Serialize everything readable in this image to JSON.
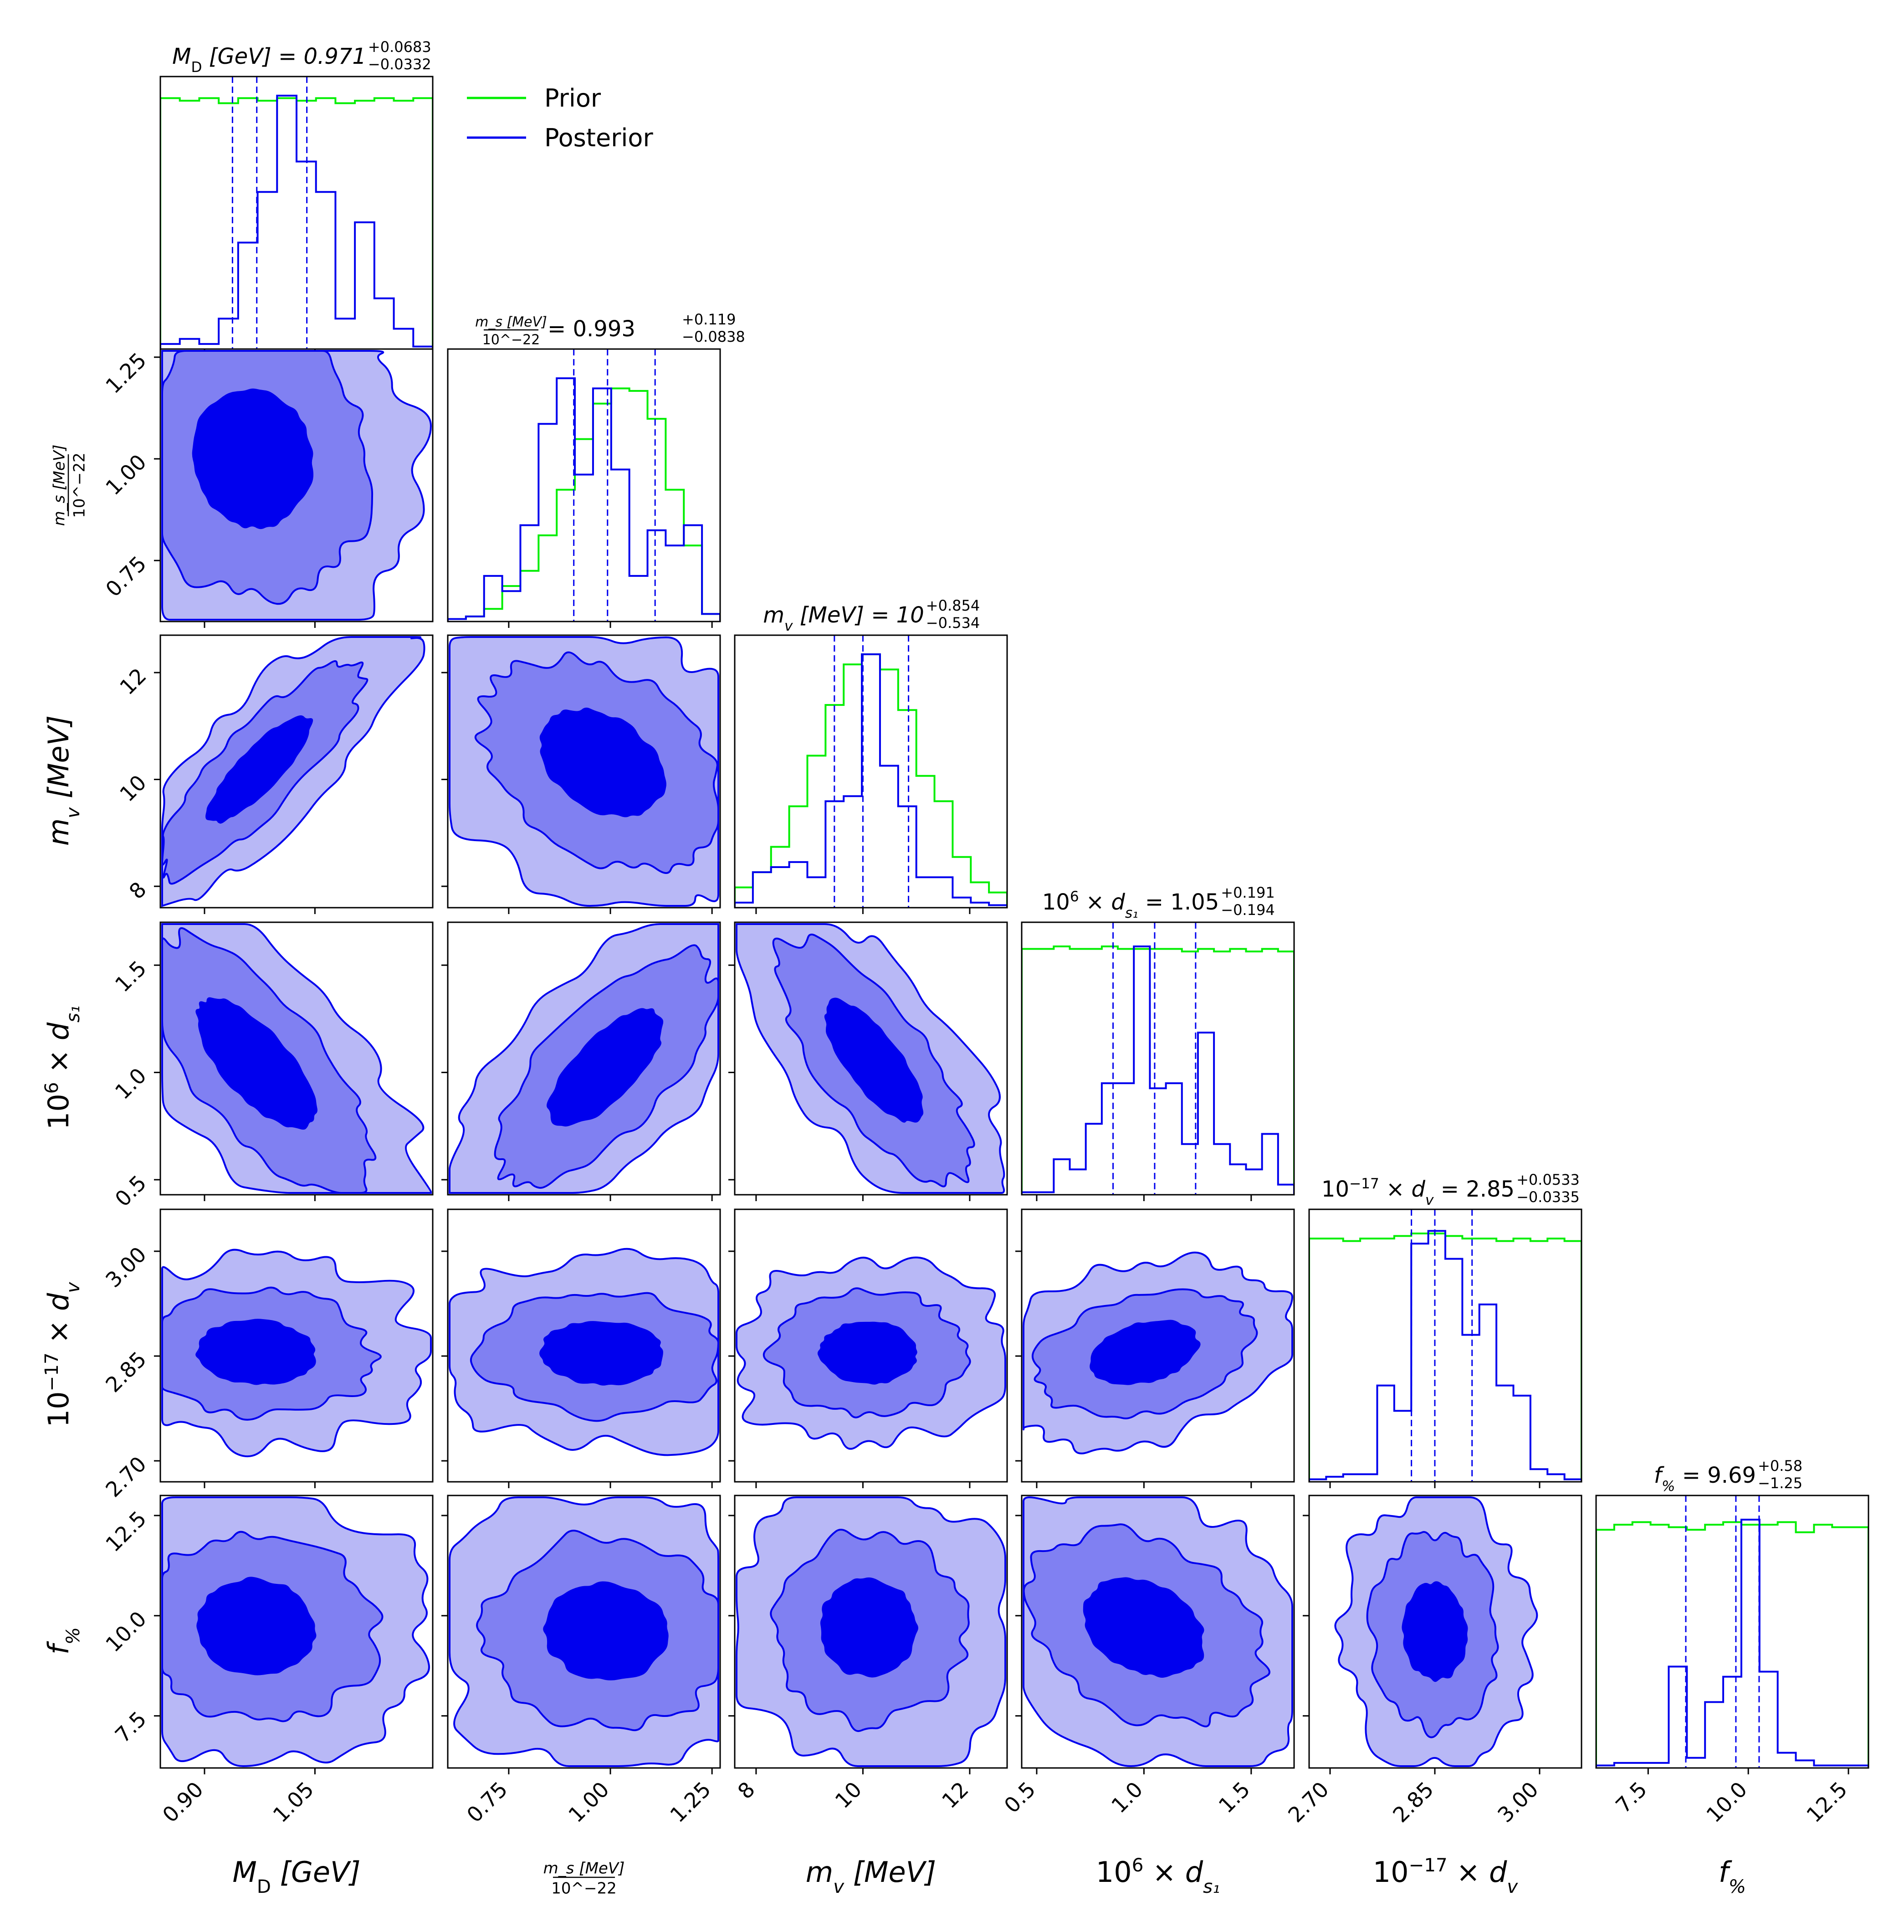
{
  "chart_data": {
    "type": "corner",
    "colors": {
      "prior": "#00ee00",
      "posterior": "#0000ee",
      "fill_levels": [
        "#b8b8f6",
        "#8080f2",
        "#0000ee"
      ]
    },
    "legend": {
      "placement": "top-right-of-first-panel",
      "entries": [
        "Prior",
        "Posterior"
      ]
    },
    "parameters": [
      {
        "key": "MD",
        "label": {
          "pre": "M",
          "sub": "D",
          "post": " [GeV]"
        },
        "title": {
          "pre": "M",
          "sub": "D",
          "post": " [GeV] = 0.971",
          "plus": "+0.0683",
          "minus": "−0.0332"
        },
        "range": [
          0.84,
          1.21
        ],
        "ticks": [
          0.9,
          1.05
        ],
        "ticklabels": [
          "0.90",
          "1.05"
        ],
        "quantiles": [
          0.938,
          0.971,
          1.039
        ],
        "posterior_hist": [
          0.02,
          0.04,
          0.02,
          0.12,
          0.42,
          0.62,
          1.0,
          0.74,
          0.62,
          0.12,
          0.5,
          0.2,
          0.08,
          0.01
        ],
        "prior_hist": [
          0.99,
          0.98,
          0.99,
          0.97,
          0.99,
          0.98,
          0.99,
          0.98,
          0.99,
          0.97,
          0.98,
          0.99,
          0.98,
          0.99
        ]
      },
      {
        "key": "ms",
        "label": {
          "frac_num": "m_s [MeV]",
          "frac_den": "10^−22"
        },
        "title": {
          "frac_num": "m_s [MeV]",
          "frac_den": "10^−22",
          "post": " = 0.993",
          "plus": "+0.119",
          "minus": "−0.0838"
        },
        "range": [
          0.6,
          1.27
        ],
        "ticks": [
          0.75,
          1.0,
          1.25
        ],
        "ticklabels": [
          "0.75",
          "1.00",
          "1.25"
        ],
        "quantiles": [
          0.91,
          0.993,
          1.11
        ],
        "posterior_hist": [
          0.01,
          0.02,
          0.18,
          0.12,
          0.38,
          0.78,
          0.96,
          0.58,
          0.92,
          0.6,
          0.18,
          0.36,
          0.3,
          0.38,
          0.03
        ],
        "prior_hist": [
          0.01,
          0.02,
          0.05,
          0.14,
          0.2,
          0.34,
          0.52,
          0.72,
          0.86,
          0.92,
          0.91,
          0.8,
          0.52,
          0.3,
          0.03
        ]
      },
      {
        "key": "mv",
        "label": {
          "pre": "m",
          "sub": "v",
          "post": " [MeV]"
        },
        "title": {
          "pre": "m",
          "sub": "v",
          "post": " [MeV] = 10",
          "plus": "+0.854",
          "minus": "−0.534"
        },
        "range": [
          7.6,
          12.7
        ],
        "ticks": [
          8,
          10,
          12
        ],
        "ticklabels": [
          "8",
          "10",
          "12"
        ],
        "quantiles": [
          9.466,
          10.0,
          10.854
        ],
        "posterior_hist": [
          0.02,
          0.14,
          0.16,
          0.18,
          0.12,
          0.42,
          0.44,
          1.0,
          0.56,
          0.4,
          0.12,
          0.12,
          0.04,
          0.02,
          0.01
        ],
        "prior_hist": [
          0.08,
          0.14,
          0.24,
          0.4,
          0.6,
          0.8,
          0.96,
          1.0,
          0.94,
          0.78,
          0.52,
          0.42,
          0.2,
          0.1,
          0.06
        ]
      },
      {
        "key": "ds1",
        "label": {
          "pre": "10",
          "sup": "6",
          "mid": " × d",
          "sub": "s₁",
          "post": ""
        },
        "title": {
          "pre": "10",
          "sup": "6",
          "mid": " × d",
          "sub": "s₁",
          "post": " = 1.05",
          "plus": "+0.191",
          "minus": "−0.194"
        },
        "range": [
          0.43,
          1.7
        ],
        "ticks": [
          0.5,
          1.0,
          1.5
        ],
        "ticklabels": [
          "0.5",
          "1.0",
          "1.5"
        ],
        "quantiles": [
          0.856,
          1.05,
          1.241
        ],
        "posterior_hist": [
          0.01,
          0.01,
          0.14,
          0.1,
          0.28,
          0.44,
          0.44,
          0.98,
          0.42,
          0.44,
          0.2,
          0.64,
          0.2,
          0.12,
          0.1,
          0.24,
          0.04
        ],
        "prior_hist": [
          0.97,
          0.97,
          0.98,
          0.97,
          0.97,
          0.98,
          0.97,
          0.97,
          0.97,
          0.97,
          0.96,
          0.97,
          0.96,
          0.97,
          0.96,
          0.97,
          0.96
        ]
      },
      {
        "key": "dv",
        "label": {
          "pre": "10",
          "sup": "−17",
          "mid": " × d",
          "sub": "v",
          "post": ""
        },
        "title": {
          "pre": "10",
          "sup": "−17",
          "mid": " × d",
          "sub": "v",
          "post": " = 2.85",
          "plus": "+0.0533",
          "minus": "−0.0335"
        },
        "range": [
          2.67,
          3.06
        ],
        "ticks": [
          2.7,
          2.85,
          3.0
        ],
        "ticklabels": [
          "2.70",
          "2.85",
          "3.00"
        ],
        "quantiles": [
          2.8165,
          2.85,
          2.9033
        ],
        "posterior_hist": [
          0.01,
          0.02,
          0.03,
          0.03,
          0.38,
          0.28,
          0.94,
          0.99,
          0.88,
          0.58,
          0.7,
          0.38,
          0.34,
          0.05,
          0.03,
          0.01
        ],
        "prior_hist": [
          0.96,
          0.96,
          0.95,
          0.96,
          0.96,
          0.97,
          0.98,
          0.98,
          0.97,
          0.96,
          0.96,
          0.95,
          0.96,
          0.95,
          0.96,
          0.95
        ]
      },
      {
        "key": "f",
        "label": {
          "pre": "f",
          "sub": "%",
          "post": ""
        },
        "title": {
          "pre": "f",
          "sub": "%",
          "post": " = 9.69",
          "plus": "+0.58",
          "minus": "−1.25"
        },
        "range": [
          6.2,
          13.0
        ],
        "ticks": [
          7.5,
          10.0,
          12.5
        ],
        "ticklabels": [
          "7.5",
          "10.0",
          "12.5"
        ],
        "quantiles": [
          8.44,
          9.69,
          10.27
        ],
        "posterior_hist": [
          0.01,
          0.02,
          0.02,
          0.02,
          0.4,
          0.04,
          0.26,
          0.36,
          0.98,
          0.38,
          0.06,
          0.03,
          0.01,
          0.01,
          0.01
        ],
        "prior_hist": [
          0.94,
          0.96,
          0.97,
          0.96,
          0.95,
          0.94,
          0.96,
          0.97,
          0.96,
          0.96,
          0.97,
          0.93,
          0.96,
          0.95,
          0.95
        ]
      }
    ],
    "pairs": [
      {
        "x": "MD",
        "y": "ms",
        "center": [
          0.965,
          1.0
        ],
        "sigma": [
          0.08,
          0.17
        ],
        "rho": -0.05
      },
      {
        "x": "MD",
        "y": "mv",
        "center": [
          0.975,
          10.2
        ],
        "sigma": [
          0.07,
          1.0
        ],
        "rho": 0.85
      },
      {
        "x": "ms",
        "y": "mv",
        "center": [
          0.98,
          10.3
        ],
        "sigma": [
          0.15,
          1.0
        ],
        "rho": -0.35
      },
      {
        "x": "MD",
        "y": "ds1",
        "center": [
          0.97,
          1.04
        ],
        "sigma": [
          0.08,
          0.3
        ],
        "rho": -0.72
      },
      {
        "x": "ms",
        "y": "ds1",
        "center": [
          0.99,
          1.02
        ],
        "sigma": [
          0.14,
          0.27
        ],
        "rho": 0.72
      },
      {
        "x": "mv",
        "y": "ds1",
        "center": [
          10.2,
          1.05
        ],
        "sigma": [
          0.9,
          0.28
        ],
        "rho": -0.75
      },
      {
        "x": "MD",
        "y": "dv",
        "center": [
          0.97,
          2.855
        ],
        "sigma": [
          0.08,
          0.045
        ],
        "rho": -0.05
      },
      {
        "x": "ms",
        "y": "dv",
        "center": [
          0.98,
          2.855
        ],
        "sigma": [
          0.15,
          0.045
        ],
        "rho": -0.05
      },
      {
        "x": "mv",
        "y": "dv",
        "center": [
          10.1,
          2.855
        ],
        "sigma": [
          0.9,
          0.045
        ],
        "rho": 0.0
      },
      {
        "x": "ds1",
        "y": "dv",
        "center": [
          1.0,
          2.855
        ],
        "sigma": [
          0.25,
          0.045
        ],
        "rho": 0.3
      },
      {
        "x": "MD",
        "y": "f",
        "center": [
          0.97,
          9.7
        ],
        "sigma": [
          0.08,
          1.2
        ],
        "rho": -0.05
      },
      {
        "x": "ms",
        "y": "f",
        "center": [
          0.99,
          9.6
        ],
        "sigma": [
          0.15,
          1.2
        ],
        "rho": -0.05
      },
      {
        "x": "mv",
        "y": "f",
        "center": [
          10.1,
          9.7
        ],
        "sigma": [
          0.9,
          1.2
        ],
        "rho": 0.0
      },
      {
        "x": "ds1",
        "y": "f",
        "center": [
          1.0,
          9.7
        ],
        "sigma": [
          0.28,
          1.2
        ],
        "rho": -0.3
      },
      {
        "x": "dv",
        "y": "f",
        "center": [
          2.85,
          9.6
        ],
        "sigma": [
          0.045,
          1.2
        ],
        "rho": -0.05
      }
    ],
    "contour_levels_sigma": [
      1.0,
      2.0,
      3.0
    ]
  }
}
